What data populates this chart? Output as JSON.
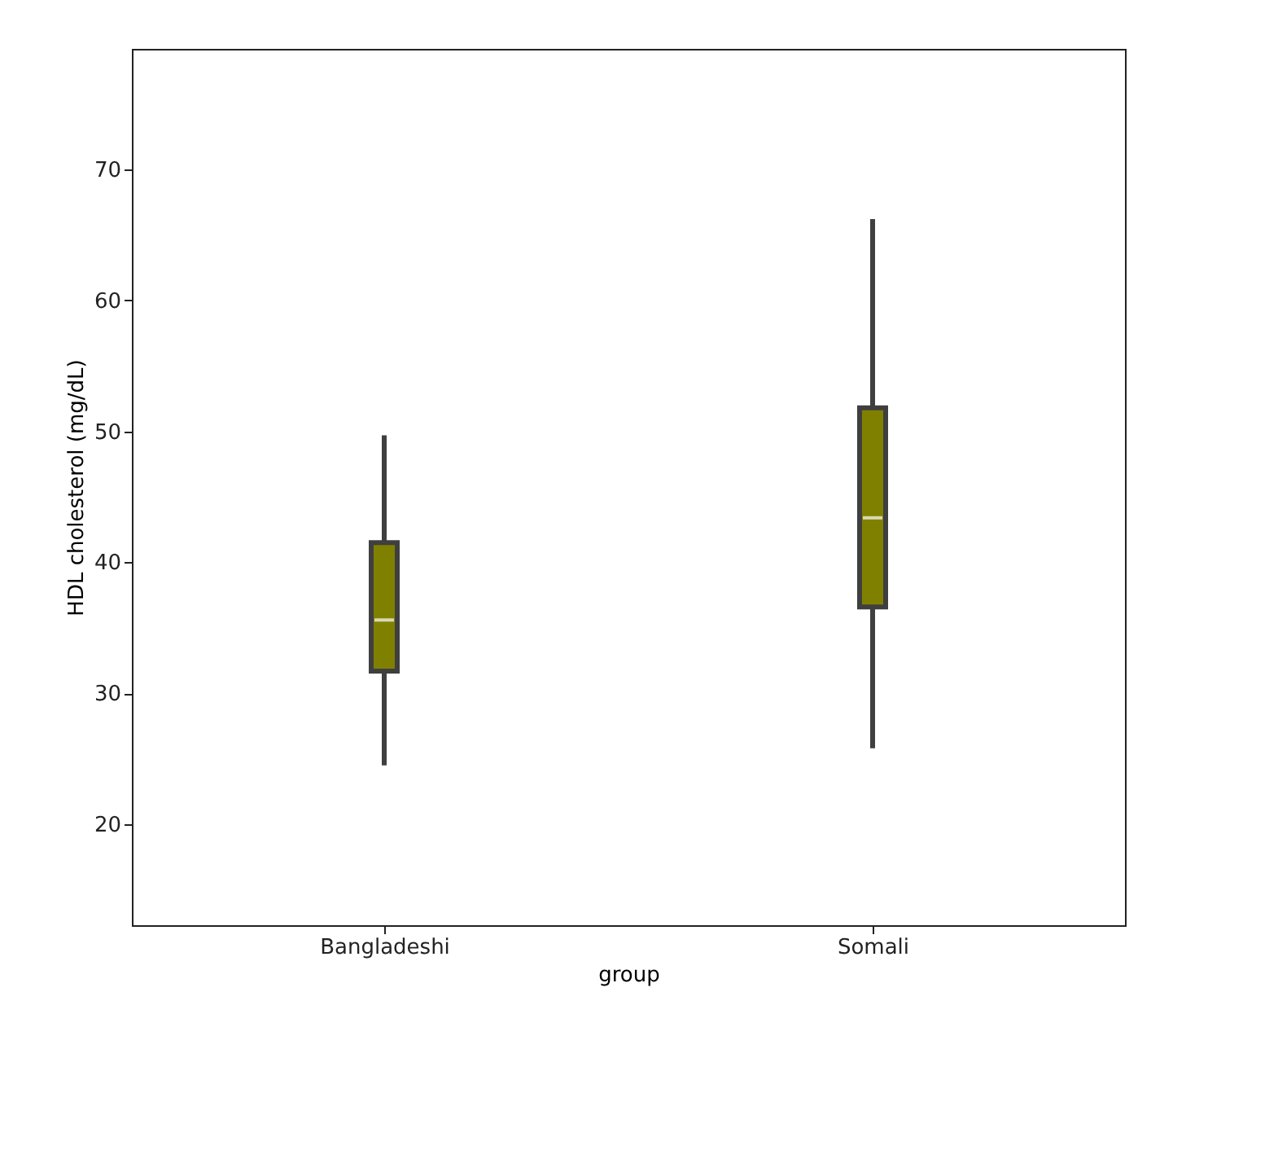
{
  "chart_data": {
    "type": "box",
    "xlabel": "group",
    "ylabel": "HDL cholesterol (mg/dL)",
    "categories": [
      "Bangladeshi",
      "Somali"
    ],
    "color": "#808000",
    "boxes": [
      {
        "low": 24.5,
        "q1": 31.7,
        "median": 35.6,
        "q3": 41.5,
        "high": 49.7
      },
      {
        "low": 25.8,
        "q1": 36.6,
        "median": 43.4,
        "q3": 51.8,
        "high": 66.2
      }
    ],
    "ylim": [
      12.3,
      79.2
    ],
    "yticks": [
      20,
      30,
      40,
      50,
      60,
      70
    ],
    "grid": false
  }
}
